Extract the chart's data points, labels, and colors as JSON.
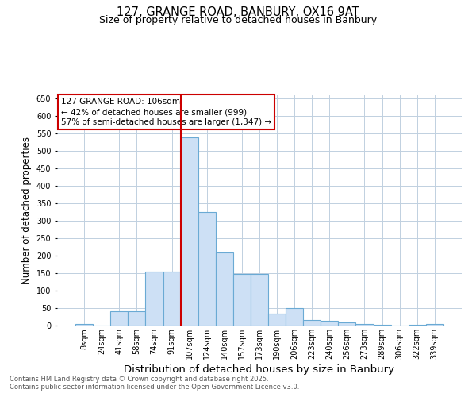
{
  "title_line1": "127, GRANGE ROAD, BANBURY, OX16 9AT",
  "title_line2": "Size of property relative to detached houses in Banbury",
  "categories": [
    "8sqm",
    "24sqm",
    "41sqm",
    "58sqm",
    "74sqm",
    "91sqm",
    "107sqm",
    "124sqm",
    "140sqm",
    "157sqm",
    "173sqm",
    "190sqm",
    "206sqm",
    "223sqm",
    "240sqm",
    "256sqm",
    "273sqm",
    "289sqm",
    "306sqm",
    "322sqm",
    "339sqm"
  ],
  "values": [
    5,
    0,
    42,
    42,
    155,
    155,
    540,
    325,
    210,
    148,
    148,
    35,
    50,
    15,
    13,
    10,
    5,
    3,
    0,
    3,
    5
  ],
  "bar_color": "#cde0f5",
  "bar_edge_color": "#6aaad4",
  "bar_edge_width": 0.8,
  "vline_x_index": 6,
  "vline_color": "#cc0000",
  "annotation_title": "127 GRANGE ROAD: 106sqm",
  "annotation_line2": "← 42% of detached houses are smaller (999)",
  "annotation_line3": "57% of semi-detached houses are larger (1,347) →",
  "annotation_box_color": "#cc0000",
  "xlabel": "Distribution of detached houses by size in Banbury",
  "ylabel": "Number of detached properties",
  "ylabel_fontsize": 8.5,
  "xlabel_fontsize": 9.5,
  "ylim": [
    0,
    660
  ],
  "yticks": [
    0,
    50,
    100,
    150,
    200,
    250,
    300,
    350,
    400,
    450,
    500,
    550,
    600,
    650
  ],
  "footnote_line1": "Contains HM Land Registry data © Crown copyright and database right 2025.",
  "footnote_line2": "Contains public sector information licensed under the Open Government Licence v3.0.",
  "bg_color": "#ffffff",
  "grid_color": "#c0d0e0",
  "title_fontsize": 10.5,
  "subtitle_fontsize": 9,
  "annotation_fontsize": 7.5,
  "tick_fontsize": 7
}
